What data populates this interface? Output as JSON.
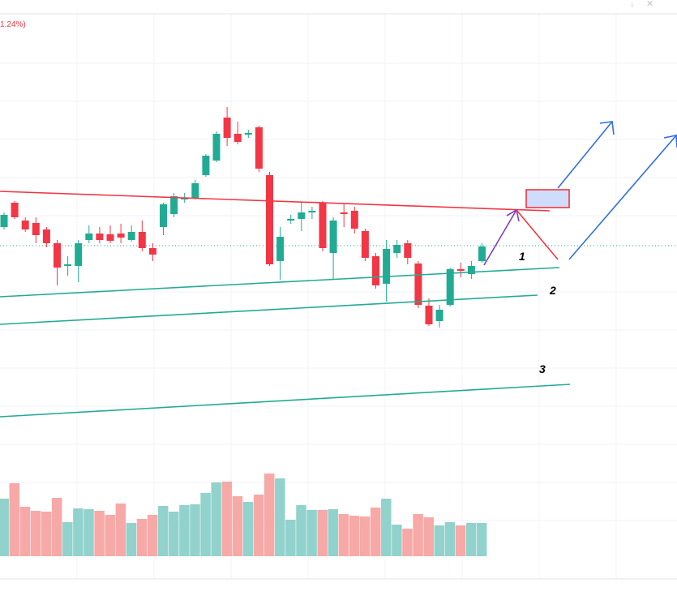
{
  "header": {
    "change_text": "1.24%)"
  },
  "chart_data": {
    "type": "candlestick",
    "open": [
      320,
      350,
      328,
      325,
      317,
      300,
      272,
      272,
      304,
      312,
      311,
      312,
      304,
      314,
      294,
      320,
      336,
      354,
      356,
      384,
      402,
      455,
      435,
      434,
      443,
      384,
      278,
      328,
      330,
      338,
      350,
      288,
      338,
      340,
      315,
      284,
      250,
      288,
      300,
      275,
      223,
      204,
      224,
      268,
      262,
      278
    ],
    "high": [
      338,
      352,
      332,
      332,
      320,
      304,
      284,
      304,
      322,
      320,
      322,
      324,
      322,
      328,
      300,
      350,
      362,
      362,
      378,
      410,
      438,
      468,
      450,
      440,
      445,
      388,
      320,
      335,
      350,
      345,
      352,
      332,
      348,
      345,
      318,
      288,
      304,
      304,
      304,
      278,
      232,
      224,
      270,
      276,
      278,
      300
    ],
    "low": [
      317,
      330,
      314,
      300,
      295,
      248,
      260,
      252,
      300,
      300,
      300,
      300,
      302,
      290,
      278,
      310,
      332,
      350,
      354,
      382,
      400,
      420,
      422,
      430,
      388,
      272,
      255,
      324,
      315,
      330,
      290,
      255,
      320,
      312,
      278,
      244,
      228,
      282,
      274,
      220,
      198,
      196,
      222,
      258,
      256,
      276
    ],
    "close": [
      335,
      332,
      317,
      310,
      300,
      270,
      274,
      300,
      312,
      304,
      303,
      307,
      314,
      294,
      286,
      348,
      358,
      356,
      374,
      408,
      435,
      430,
      425,
      436,
      392,
      274,
      308,
      330,
      338,
      340,
      294,
      328,
      336,
      318,
      282,
      248,
      293,
      298,
      282,
      224,
      200,
      218,
      268,
      266,
      272,
      296
    ],
    "volume": [
      71,
      90,
      61,
      56,
      55,
      72,
      42,
      59,
      58,
      56,
      51,
      65,
      41,
      46,
      51,
      62,
      55,
      63,
      64,
      78,
      91,
      92,
      74,
      67,
      76,
      102,
      96,
      45,
      63,
      57,
      57,
      58,
      52,
      50,
      49,
      60,
      71,
      39,
      34,
      52,
      48,
      38,
      42,
      38,
      41,
      41
    ],
    "ylim": [
      0,
      600
    ],
    "volume_ylim": [
      0,
      110
    ],
    "up_color": "#22ab94",
    "down_color": "#f23645",
    "volume_up_color": "#92d2cc",
    "volume_down_color": "#f7a9a7",
    "annotations": [
      "1",
      "2",
      "3"
    ]
  }
}
